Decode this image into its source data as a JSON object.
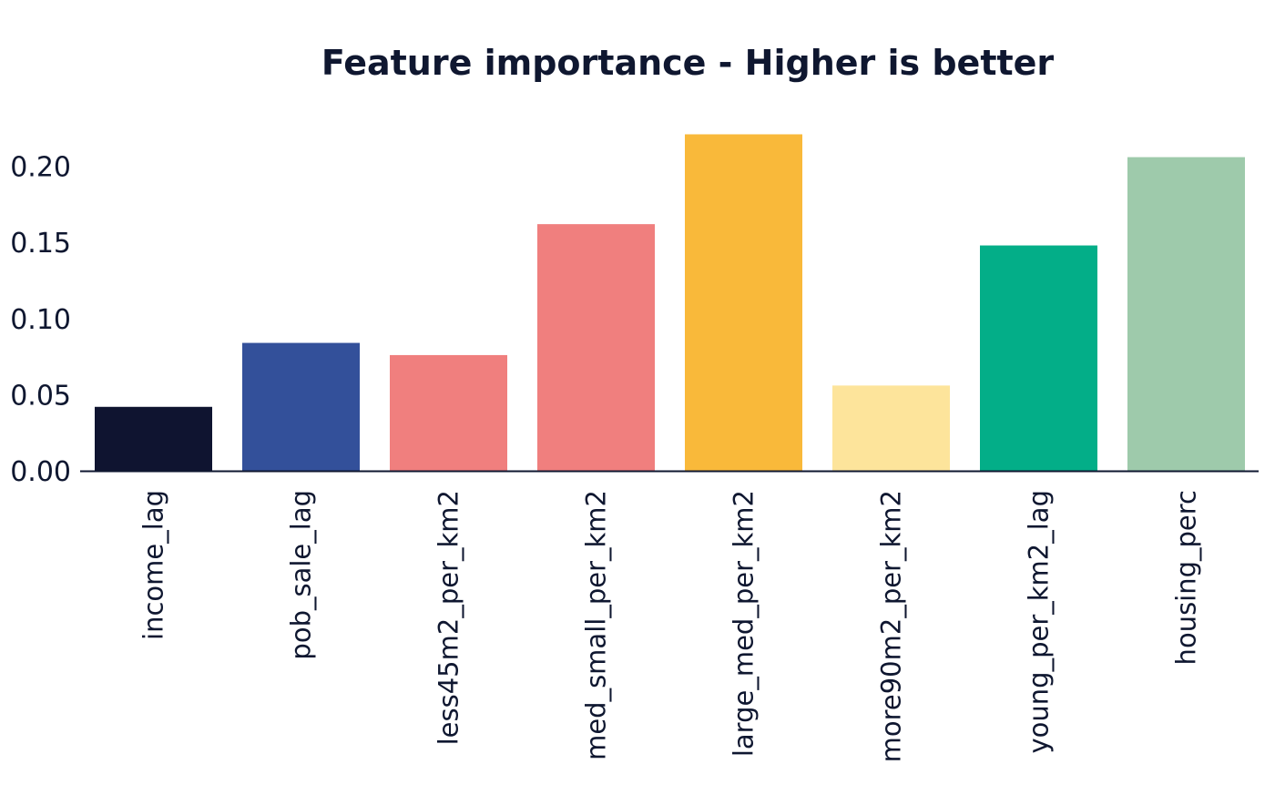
{
  "chart_data": {
    "type": "bar",
    "title": "Feature importance - Higher is better",
    "xlabel": "",
    "ylabel": "",
    "categories": [
      "income_lag",
      "pob_sale_lag",
      "less45m2_per_km2",
      "med_small_per_km2",
      "large_med_per_km2",
      "more90m2_per_km2",
      "young_per_km2_lag",
      "housing_perc"
    ],
    "values": [
      0.042,
      0.084,
      0.076,
      0.162,
      0.221,
      0.056,
      0.148,
      0.206
    ],
    "colors": [
      "#0f1430",
      "#33509a",
      "#f07f7e",
      "#f07f7e",
      "#f9b93a",
      "#fde49b",
      "#03ae88",
      "#9ecaab"
    ],
    "ylim": [
      0,
      0.23
    ],
    "yticks": [
      "0.00",
      "0.05",
      "0.10",
      "0.15",
      "0.20"
    ],
    "ytick_values": [
      0,
      0.05,
      0.1,
      0.15,
      0.2
    ],
    "grid": false,
    "legend": "none",
    "axis_color": "#0f1730"
  }
}
